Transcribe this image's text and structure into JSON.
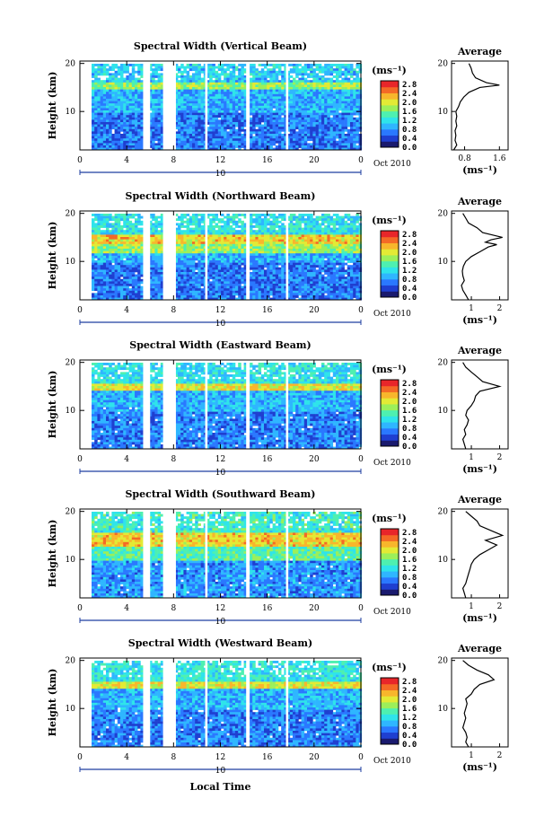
{
  "figure": {
    "x_axis_label": "Local Time",
    "date_label": "Oct 2010",
    "day_label": "10",
    "colorbar_unit": "(ms⁻¹)",
    "colors": {
      "scale": [
        "#1a1a6e",
        "#1f3fd0",
        "#2a78ff",
        "#2fb6ff",
        "#2fe4ea",
        "#4ef0b0",
        "#9cef5a",
        "#e3ea35",
        "#f8b62c",
        "#f46a26",
        "#e8262a"
      ],
      "gap": "#ffffff",
      "axis": "#000000"
    }
  },
  "chart_data": [
    {
      "type": "heatmap",
      "title": "Spectral Width (Vertical Beam)",
      "ylabel": "Height (km)",
      "xlabel": "Local Time",
      "x_ticks": [
        "0",
        "4",
        "8",
        "12",
        "16",
        "20",
        "0"
      ],
      "y_ticks": [
        "10",
        "20"
      ],
      "xlim": [
        0,
        24
      ],
      "ylim": [
        2,
        20.5
      ],
      "colorbar": {
        "unit": "(ms⁻¹)",
        "ticks": [
          "2.8",
          "2.4",
          "2.0",
          "1.6",
          "1.2",
          "0.8",
          "0.4",
          "0.0"
        ]
      },
      "data_gaps_hours": [
        [
          5.4,
          6.0
        ],
        [
          7.1,
          8.2
        ],
        [
          10.7,
          10.9
        ],
        [
          14.2,
          14.5
        ],
        [
          17.6,
          17.8
        ]
      ],
      "average_profile": {
        "title": "Average",
        "xlabel": "(ms⁻¹)",
        "x_ticks": [
          "0.8",
          "1.6"
        ],
        "xlim": [
          0.5,
          1.8
        ],
        "y_ticks": [
          "10",
          "20"
        ],
        "height": [
          2,
          3,
          4,
          5,
          6,
          7,
          8,
          9,
          10,
          11,
          12,
          13,
          14,
          15,
          15.5,
          16,
          17,
          18,
          19,
          20
        ],
        "width": [
          0.55,
          0.62,
          0.58,
          0.6,
          0.58,
          0.62,
          0.6,
          0.62,
          0.6,
          0.66,
          0.7,
          0.78,
          0.9,
          1.15,
          1.6,
          1.3,
          1.05,
          0.98,
          0.95,
          0.9
        ]
      }
    },
    {
      "type": "heatmap",
      "title": "Spectral Width (Northward Beam)",
      "ylabel": "Height (km)",
      "xlabel": "Local Time",
      "x_ticks": [
        "0",
        "4",
        "8",
        "12",
        "16",
        "20",
        "0"
      ],
      "y_ticks": [
        "10",
        "20"
      ],
      "xlim": [
        0,
        24
      ],
      "ylim": [
        2,
        20.5
      ],
      "colorbar": {
        "unit": "(ms⁻¹)",
        "ticks": [
          "2.8",
          "2.4",
          "2.0",
          "1.6",
          "1.2",
          "0.8",
          "0.4",
          "0.0"
        ]
      },
      "data_gaps_hours": [
        [
          5.4,
          6.0
        ],
        [
          7.1,
          8.2
        ],
        [
          10.7,
          10.9
        ],
        [
          14.2,
          14.5
        ],
        [
          17.6,
          17.8
        ]
      ],
      "average_profile": {
        "title": "Average",
        "xlabel": "(ms⁻¹)",
        "x_ticks": [
          "1",
          "2"
        ],
        "xlim": [
          0.3,
          2.3
        ],
        "y_ticks": [
          "10",
          "20"
        ],
        "height": [
          2,
          3,
          4,
          5,
          6,
          7,
          8,
          9,
          10,
          11,
          12,
          13,
          13.5,
          14,
          14.5,
          15,
          16,
          17,
          18,
          19,
          20
        ],
        "width": [
          0.9,
          0.8,
          0.7,
          0.65,
          0.75,
          0.7,
          0.68,
          0.72,
          0.8,
          1.0,
          1.3,
          1.6,
          1.9,
          1.5,
          1.7,
          2.1,
          1.4,
          1.2,
          0.9,
          0.8,
          0.7
        ]
      }
    },
    {
      "type": "heatmap",
      "title": "Spectral Width (Eastward Beam)",
      "ylabel": "Height (km)",
      "xlabel": "Local Time",
      "x_ticks": [
        "0",
        "4",
        "8",
        "12",
        "16",
        "20",
        "0"
      ],
      "y_ticks": [
        "10",
        "20"
      ],
      "xlim": [
        0,
        24
      ],
      "ylim": [
        2,
        20.5
      ],
      "colorbar": {
        "unit": "(ms⁻¹)",
        "ticks": [
          "2.8",
          "2.4",
          "2.0",
          "1.6",
          "1.2",
          "0.8",
          "0.4",
          "0.0"
        ]
      },
      "data_gaps_hours": [
        [
          5.4,
          6.0
        ],
        [
          7.1,
          8.2
        ],
        [
          10.7,
          10.9
        ],
        [
          14.2,
          14.5
        ],
        [
          17.6,
          17.8
        ]
      ],
      "average_profile": {
        "title": "Average",
        "xlabel": "(ms⁻¹)",
        "x_ticks": [
          "1",
          "2"
        ],
        "xlim": [
          0.3,
          2.3
        ],
        "y_ticks": [
          "10",
          "20"
        ],
        "height": [
          2,
          3,
          4,
          5,
          6,
          7,
          8,
          9,
          10,
          11,
          12,
          13,
          14,
          15,
          16,
          17,
          18,
          19,
          20
        ],
        "width": [
          0.8,
          0.75,
          0.7,
          0.8,
          0.75,
          0.85,
          0.9,
          0.8,
          0.85,
          1.0,
          1.1,
          1.15,
          1.3,
          2.0,
          1.4,
          1.2,
          1.0,
          0.8,
          0.7
        ]
      }
    },
    {
      "type": "heatmap",
      "title": "Spectral Width (Southward Beam)",
      "ylabel": "Height (km)",
      "xlabel": "Local Time",
      "x_ticks": [
        "0",
        "4",
        "8",
        "12",
        "16",
        "20",
        "0"
      ],
      "y_ticks": [
        "10",
        "20"
      ],
      "xlim": [
        0,
        24
      ],
      "ylim": [
        2,
        20.5
      ],
      "colorbar": {
        "unit": "(ms⁻¹)",
        "ticks": [
          "2.8",
          "2.4",
          "2.0",
          "1.6",
          "1.2",
          "0.8",
          "0.4",
          "0.0"
        ]
      },
      "data_gaps_hours": [
        [
          5.4,
          6.0
        ],
        [
          7.1,
          8.2
        ],
        [
          10.7,
          10.9
        ],
        [
          14.2,
          14.5
        ],
        [
          17.6,
          17.8
        ]
      ],
      "average_profile": {
        "title": "Average",
        "xlabel": "(ms⁻¹)",
        "x_ticks": [
          "1",
          "2"
        ],
        "xlim": [
          0.3,
          2.3
        ],
        "y_ticks": [
          "10",
          "20"
        ],
        "height": [
          2,
          3,
          4,
          5,
          6,
          7,
          8,
          9,
          10,
          11,
          12,
          13,
          14,
          15,
          16,
          17,
          18,
          19,
          20
        ],
        "width": [
          0.8,
          0.75,
          0.7,
          0.8,
          0.85,
          0.9,
          0.95,
          1.0,
          1.1,
          1.3,
          1.6,
          1.9,
          1.5,
          2.1,
          1.7,
          1.3,
          1.2,
          1.0,
          0.8
        ]
      }
    },
    {
      "type": "heatmap",
      "title": "Spectral Width (Westward Beam)",
      "ylabel": "Height (km)",
      "xlabel": "Local Time",
      "x_ticks": [
        "0",
        "4",
        "8",
        "12",
        "16",
        "20",
        "0"
      ],
      "y_ticks": [
        "10",
        "20"
      ],
      "xlim": [
        0,
        24
      ],
      "ylim": [
        2,
        20.5
      ],
      "colorbar": {
        "unit": "(ms⁻¹)",
        "ticks": [
          "2.8",
          "2.4",
          "2.0",
          "1.6",
          "1.2",
          "0.8",
          "0.4",
          "0.0"
        ]
      },
      "data_gaps_hours": [
        [
          5.4,
          6.0
        ],
        [
          7.1,
          8.2
        ],
        [
          10.7,
          10.9
        ],
        [
          14.2,
          14.5
        ],
        [
          17.6,
          17.8
        ]
      ],
      "average_profile": {
        "title": "Average",
        "xlabel": "(ms⁻¹)",
        "x_ticks": [
          "1",
          "2"
        ],
        "xlim": [
          0.3,
          2.3
        ],
        "y_ticks": [
          "10",
          "20"
        ],
        "height": [
          2,
          3,
          4,
          5,
          6,
          7,
          8,
          9,
          10,
          11,
          12,
          13,
          14,
          15,
          16,
          17,
          18,
          19,
          20
        ],
        "width": [
          0.9,
          0.8,
          0.85,
          0.8,
          0.7,
          0.75,
          0.8,
          0.75,
          0.8,
          0.85,
          0.8,
          1.0,
          1.1,
          1.3,
          1.8,
          1.6,
          1.2,
          0.9,
          0.7
        ]
      }
    }
  ]
}
